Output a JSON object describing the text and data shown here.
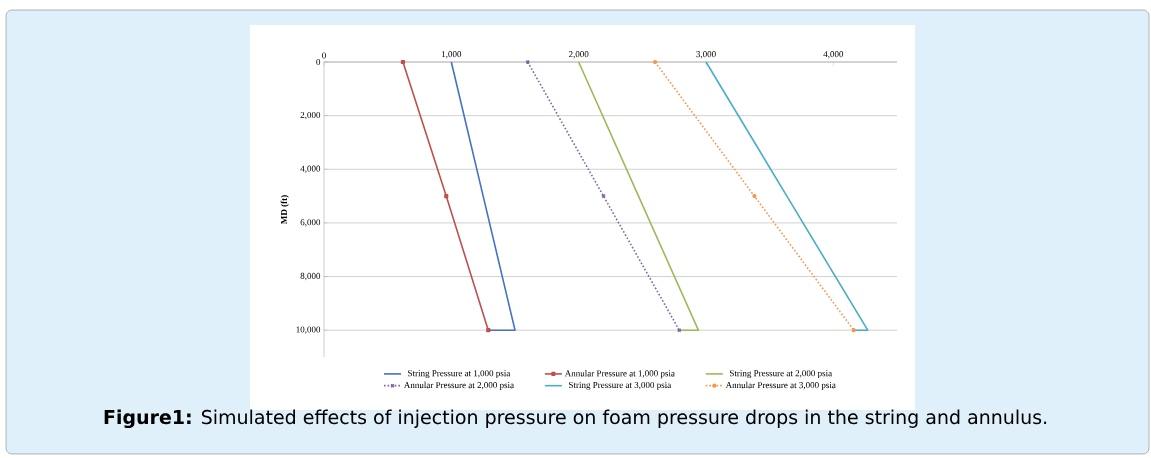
{
  "chart_data": {
    "type": "line",
    "ylabel": "MD (ft)",
    "xlim": [
      0,
      4500
    ],
    "ylim": [
      11000,
      0
    ],
    "xticks": [
      0,
      {
        "value": 1000,
        "label": "1,000"
      },
      {
        "value": 2000,
        "label": "2,000"
      },
      {
        "value": 3000,
        "label": "3,000"
      },
      {
        "value": 4000,
        "label": "4,000"
      }
    ],
    "yticks": [
      0,
      {
        "value": 2000,
        "label": "2,000"
      },
      {
        "value": 4000,
        "label": "4,000"
      },
      {
        "value": 6000,
        "label": "6,000"
      },
      {
        "value": 8000,
        "label": "8,000"
      },
      {
        "value": 10000,
        "label": "10,000"
      }
    ],
    "grid": "y",
    "legend": "bottom",
    "series": [
      {
        "name": "String Pressure at 1,000 psia",
        "color": "#4472c4",
        "line_style": "solid",
        "marker": "none",
        "x": [
          1000,
          1250,
          1500,
          1290
        ],
        "values": [
          0,
          5000,
          10000,
          10000
        ]
      },
      {
        "name": "Annular Pressure at 1,000 psia",
        "color": "#c0504d",
        "line_style": "solid",
        "marker": "square",
        "x": [
          620,
          960,
          1290
        ],
        "values": [
          0,
          5000,
          10000
        ]
      },
      {
        "name": "String Pressure at 2,000 psia",
        "color": "#9bbb59",
        "line_style": "solid",
        "marker": "none",
        "x": [
          2000,
          2470,
          2940,
          2790
        ],
        "values": [
          0,
          5000,
          10000,
          10000
        ]
      },
      {
        "name": "Annular Pressure at 2,000 psia",
        "color": "#8064a2",
        "line_style": "dotted",
        "marker": "cross",
        "x": [
          1600,
          2195,
          2790
        ],
        "values": [
          0,
          5000,
          10000
        ]
      },
      {
        "name": "String Pressure at 3,000 psia",
        "color": "#4bacc6",
        "line_style": "solid",
        "marker": "none",
        "x": [
          3000,
          3635,
          4270,
          4160
        ],
        "values": [
          0,
          5000,
          10000,
          10000
        ]
      },
      {
        "name": "Annular Pressure at 3,000 psia",
        "color": "#f79646",
        "line_style": "dotted",
        "marker": "circle",
        "x": [
          2600,
          3380,
          4160
        ],
        "values": [
          0,
          5000,
          10000
        ]
      }
    ],
    "annotations": [
      "**Figure1:** Simulated effects of injection pressure on foam pressure drops in the string and annulus."
    ]
  }
}
